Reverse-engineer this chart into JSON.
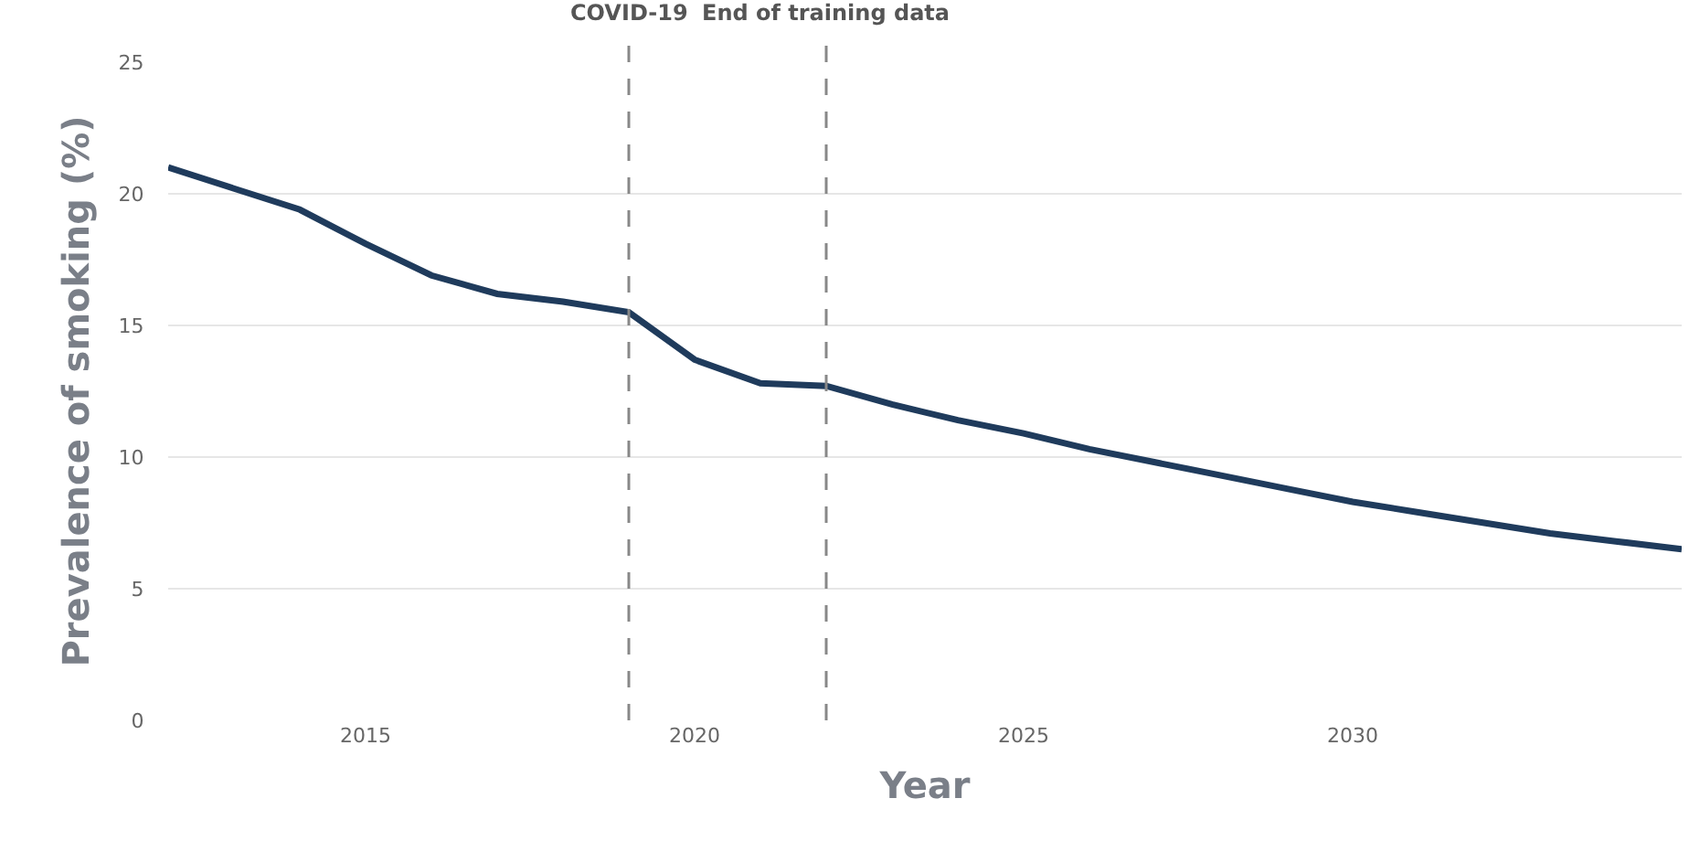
{
  "chart_data": {
    "type": "line",
    "xlabel": "Year",
    "ylabel": "Prevalence of smoking (%)",
    "x": [
      2012,
      2013,
      2014,
      2015,
      2016,
      2017,
      2018,
      2019,
      2020,
      2021,
      2022,
      2023,
      2024,
      2025,
      2026,
      2027,
      2028,
      2029,
      2030,
      2031,
      2032,
      2033,
      2034,
      2035
    ],
    "series": [
      {
        "color": "#1f3b5c",
        "values": [
          21.0,
          20.2,
          19.4,
          18.1,
          16.9,
          16.2,
          15.9,
          15.5,
          13.7,
          12.8,
          12.7,
          12.0,
          11.4,
          10.9,
          10.3,
          9.8,
          9.3,
          8.8,
          8.3,
          7.9,
          7.5,
          7.1,
          6.8,
          6.5
        ]
      }
    ],
    "xlim": [
      2012,
      2035
    ],
    "xticks": [
      2015,
      2020,
      2025,
      2030
    ],
    "ylim": [
      0,
      25
    ],
    "yticks": [
      0,
      5,
      10,
      15,
      20,
      25
    ],
    "grid": "y",
    "marker": "none",
    "line_style": "solid",
    "ref_lines": [
      {
        "axis": "x",
        "value": 2019,
        "label": "COVID-19",
        "color": "#888888",
        "line_style": "dashed"
      },
      {
        "axis": "x",
        "value": 2022,
        "label": "End of training data",
        "color": "#888888",
        "line_style": "dashed"
      }
    ]
  }
}
